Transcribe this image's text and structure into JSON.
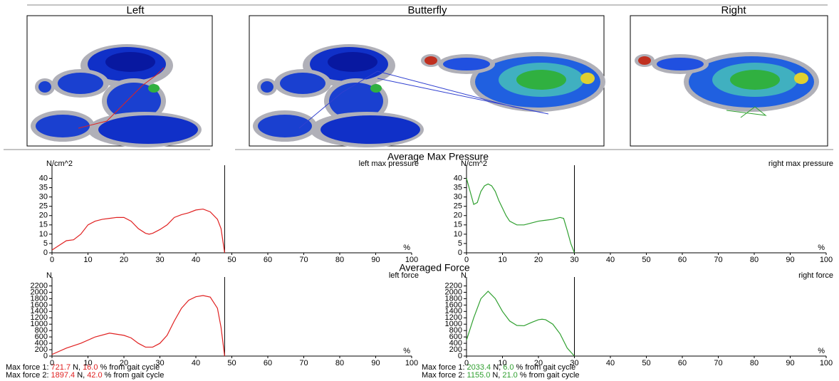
{
  "views": [
    "Left",
    "Butterfly",
    "Right"
  ],
  "sections": [
    "Average Max Pressure",
    "Averaged Force"
  ],
  "max_forces": {
    "left": [
      {
        "label": "Max force 1:",
        "force": "721.7",
        "unit": "N,",
        "percent": "16.0",
        "suffix": "% from gait cycle"
      },
      {
        "label": "Max force 2:",
        "force": "1897.4",
        "unit": "N,",
        "percent": "42.0",
        "suffix": "% from gait cycle"
      }
    ],
    "right": [
      {
        "label": "Max force 1:",
        "force": "2033.4",
        "unit": "N,",
        "percent": "6.0",
        "suffix": "% from gait cycle"
      },
      {
        "label": "Max force 2:",
        "force": "1155.0",
        "unit": "N,",
        "percent": "21.0",
        "suffix": "% from gait cycle"
      }
    ]
  },
  "chart_data": [
    {
      "type": "line",
      "title": "left max pressure",
      "y_label": "N/cm^2",
      "x_label": "%",
      "color": "#e02020",
      "x": [
        0,
        2,
        4,
        6,
        8,
        10,
        12,
        14,
        16,
        18,
        20,
        22,
        24,
        26,
        27,
        28,
        30,
        32,
        34,
        36,
        38,
        40,
        42,
        44,
        46,
        47,
        48
      ],
      "values": [
        1.5,
        4,
        6.5,
        7,
        10,
        15,
        17,
        18,
        18.5,
        19,
        19,
        17,
        13,
        10.5,
        10,
        10.5,
        12.5,
        15,
        19,
        20.5,
        21.5,
        23,
        23.5,
        22,
        18,
        13,
        0
      ],
      "vline_x": 48,
      "xlim": [
        0,
        100
      ],
      "xticks": [
        0,
        10,
        20,
        30,
        40,
        50,
        60,
        70,
        80,
        90,
        100
      ],
      "ylim": [
        0,
        44
      ],
      "yticks": [
        0,
        5,
        10,
        15,
        20,
        25,
        30,
        35,
        40
      ]
    },
    {
      "type": "line",
      "title": "right max pressure",
      "y_label": "N/cm^2",
      "x_label": "%",
      "color": "#30a030",
      "x": [
        0,
        1,
        2,
        3,
        4,
        5,
        6,
        7,
        8,
        9,
        10,
        11,
        12,
        14,
        16,
        18,
        20,
        22,
        24,
        26,
        27,
        28,
        29,
        30
      ],
      "values": [
        40,
        33,
        26,
        27,
        33,
        36,
        37,
        36,
        33,
        28,
        24,
        20,
        17,
        15,
        15,
        16,
        17,
        17.5,
        18,
        19,
        18.5,
        12,
        5,
        0
      ],
      "vline_x": 30,
      "xlim": [
        0,
        100
      ],
      "xticks": [
        0,
        10,
        20,
        30,
        40,
        50,
        60,
        70,
        80,
        90,
        100
      ],
      "ylim": [
        0,
        44
      ],
      "yticks": [
        0,
        5,
        10,
        15,
        20,
        25,
        30,
        35,
        40
      ]
    },
    {
      "type": "line",
      "title": "left force",
      "y_label": "N",
      "x_label": "%",
      "color": "#e02020",
      "x": [
        0,
        4,
        8,
        12,
        16,
        20,
        22,
        24,
        26,
        28,
        30,
        32,
        34,
        36,
        38,
        40,
        42,
        44,
        46,
        47,
        48
      ],
      "values": [
        50,
        250,
        400,
        600,
        720,
        650,
        570,
        400,
        280,
        280,
        400,
        650,
        1100,
        1500,
        1750,
        1860,
        1897,
        1850,
        1500,
        900,
        0
      ],
      "vline_x": 48,
      "xlim": [
        0,
        100
      ],
      "xticks": [
        0,
        10,
        20,
        30,
        40,
        50,
        60,
        70,
        80,
        90,
        100
      ],
      "ylim": [
        0,
        2300
      ],
      "yticks": [
        0,
        200,
        400,
        600,
        800,
        1000,
        1200,
        1400,
        1600,
        1800,
        2000,
        2200
      ]
    },
    {
      "type": "line",
      "title": "right force",
      "y_label": "N",
      "x_label": "%",
      "color": "#30a030",
      "x": [
        0,
        2,
        4,
        6,
        8,
        10,
        12,
        14,
        16,
        18,
        20,
        21,
        22,
        24,
        26,
        28,
        30
      ],
      "values": [
        500,
        1200,
        1800,
        2033,
        1800,
        1400,
        1100,
        960,
        950,
        1050,
        1140,
        1155,
        1140,
        1000,
        700,
        250,
        0
      ],
      "vline_x": 30,
      "xlim": [
        0,
        100
      ],
      "xticks": [
        0,
        10,
        20,
        30,
        40,
        50,
        60,
        70,
        80,
        90,
        100
      ],
      "ylim": [
        0,
        2300
      ],
      "yticks": [
        0,
        200,
        400,
        600,
        800,
        1000,
        1200,
        1400,
        1600,
        1800,
        2000,
        2200
      ]
    }
  ]
}
